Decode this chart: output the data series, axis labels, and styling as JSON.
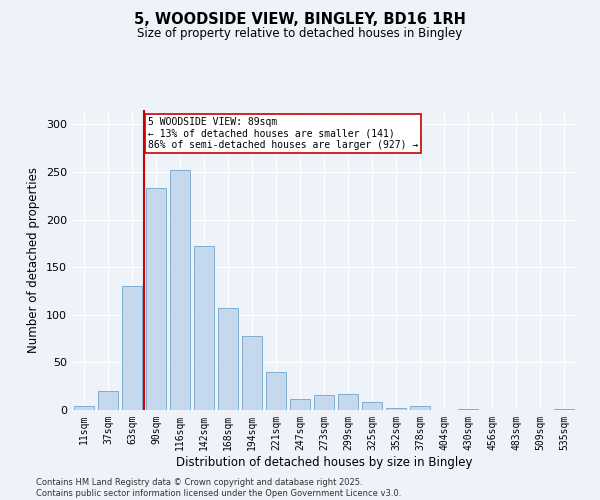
{
  "title_line1": "5, WOODSIDE VIEW, BINGLEY, BD16 1RH",
  "title_line2": "Size of property relative to detached houses in Bingley",
  "xlabel": "Distribution of detached houses by size in Bingley",
  "ylabel": "Number of detached properties",
  "categories": [
    "11sqm",
    "37sqm",
    "63sqm",
    "90sqm",
    "116sqm",
    "142sqm",
    "168sqm",
    "194sqm",
    "221sqm",
    "247sqm",
    "273sqm",
    "299sqm",
    "325sqm",
    "352sqm",
    "378sqm",
    "404sqm",
    "430sqm",
    "456sqm",
    "483sqm",
    "509sqm",
    "535sqm"
  ],
  "values": [
    4,
    20,
    130,
    233,
    252,
    172,
    107,
    78,
    40,
    12,
    16,
    17,
    8,
    2,
    4,
    0,
    1,
    0,
    0,
    0,
    1
  ],
  "bar_color": "#c5d8ed",
  "bar_edge_color": "#7faed4",
  "vline_x": 2.5,
  "vline_color": "#cc0000",
  "annotation_text": "5 WOODSIDE VIEW: 89sqm\n← 13% of detached houses are smaller (141)\n86% of semi-detached houses are larger (927) →",
  "annotation_box_color": "#ffffff",
  "annotation_box_edge_color": "#cc0000",
  "footer_line1": "Contains HM Land Registry data © Crown copyright and database right 2025.",
  "footer_line2": "Contains public sector information licensed under the Open Government Licence v3.0.",
  "bg_color": "#eef2f9",
  "grid_color": "#ffffff",
  "yticks": [
    0,
    50,
    100,
    150,
    200,
    250,
    300
  ],
  "ylim": [
    0,
    315
  ],
  "fig_width": 6.0,
  "fig_height": 5.0,
  "dpi": 100
}
